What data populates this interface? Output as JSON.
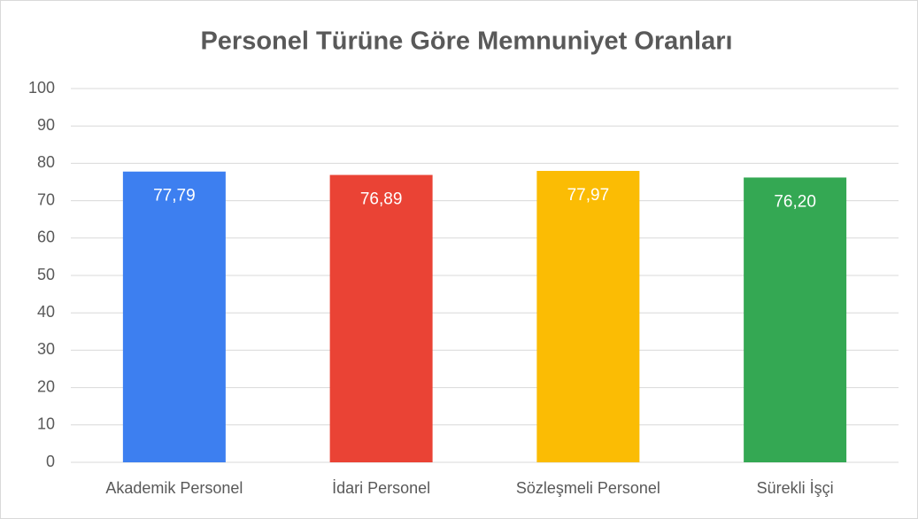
{
  "chart_data": {
    "type": "bar",
    "title": "Personel Türüne Göre Memnuniyet Oranları",
    "categories": [
      "Akademik Personel",
      "İdari Personel",
      "Sözleşmeli Personel",
      "Sürekli İşçi"
    ],
    "values": [
      77.79,
      76.89,
      77.97,
      76.2
    ],
    "value_labels": [
      "77,79",
      "76,89",
      "77,97",
      "76,20"
    ],
    "colors": [
      "#3d7ff0",
      "#ea4335",
      "#fbbc04",
      "#34a853"
    ],
    "ylim": [
      0,
      100
    ],
    "yticks": [
      0,
      10,
      20,
      30,
      40,
      50,
      60,
      70,
      80,
      90,
      100
    ],
    "grid": true
  }
}
